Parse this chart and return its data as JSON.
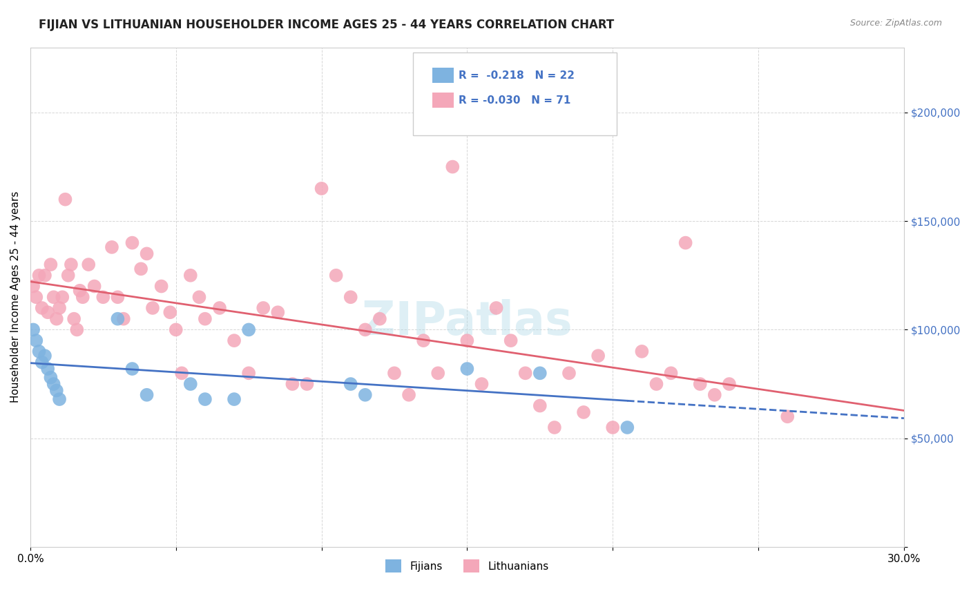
{
  "title": "FIJIAN VS LITHUANIAN HOUSEHOLDER INCOME AGES 25 - 44 YEARS CORRELATION CHART",
  "source": "Source: ZipAtlas.com",
  "xlabel": "",
  "ylabel": "Householder Income Ages 25 - 44 years",
  "xlim": [
    0.0,
    0.3
  ],
  "ylim": [
    0,
    230000
  ],
  "yticks": [
    0,
    50000,
    100000,
    150000,
    200000
  ],
  "ytick_labels": [
    "",
    "$50,000",
    "$100,000",
    "$150,000",
    "$200,000"
  ],
  "xticks": [
    0.0,
    0.05,
    0.1,
    0.15,
    0.2,
    0.25,
    0.3
  ],
  "xtick_labels": [
    "0.0%",
    "",
    "",
    "",
    "",
    "",
    "30.0%"
  ],
  "fijian_color": "#7eb3e0",
  "lithuanian_color": "#f4a7b9",
  "fijian_line_color": "#4472c4",
  "lithuanian_line_color": "#e06070",
  "r_fijian": -0.218,
  "n_fijian": 22,
  "r_lithuanian": -0.03,
  "n_lithuanian": 71,
  "fijian_x": [
    0.001,
    0.002,
    0.003,
    0.004,
    0.005,
    0.006,
    0.007,
    0.008,
    0.009,
    0.01,
    0.03,
    0.035,
    0.04,
    0.055,
    0.06,
    0.07,
    0.075,
    0.11,
    0.115,
    0.15,
    0.175,
    0.205
  ],
  "fijian_y": [
    100000,
    95000,
    90000,
    85000,
    88000,
    82000,
    78000,
    75000,
    72000,
    68000,
    105000,
    82000,
    70000,
    75000,
    68000,
    68000,
    100000,
    75000,
    70000,
    82000,
    80000,
    55000
  ],
  "lithuanian_x": [
    0.001,
    0.002,
    0.003,
    0.004,
    0.005,
    0.006,
    0.007,
    0.008,
    0.009,
    0.01,
    0.011,
    0.012,
    0.013,
    0.014,
    0.015,
    0.016,
    0.017,
    0.018,
    0.02,
    0.022,
    0.025,
    0.028,
    0.03,
    0.032,
    0.035,
    0.038,
    0.04,
    0.042,
    0.045,
    0.048,
    0.05,
    0.052,
    0.055,
    0.058,
    0.06,
    0.065,
    0.07,
    0.075,
    0.08,
    0.085,
    0.09,
    0.095,
    0.1,
    0.105,
    0.11,
    0.115,
    0.12,
    0.125,
    0.13,
    0.135,
    0.14,
    0.145,
    0.15,
    0.155,
    0.16,
    0.165,
    0.17,
    0.175,
    0.18,
    0.185,
    0.19,
    0.195,
    0.2,
    0.21,
    0.215,
    0.22,
    0.225,
    0.23,
    0.235,
    0.24,
    0.26
  ],
  "lithuanian_y": [
    120000,
    115000,
    125000,
    110000,
    125000,
    108000,
    130000,
    115000,
    105000,
    110000,
    115000,
    160000,
    125000,
    130000,
    105000,
    100000,
    118000,
    115000,
    130000,
    120000,
    115000,
    138000,
    115000,
    105000,
    140000,
    128000,
    135000,
    110000,
    120000,
    108000,
    100000,
    80000,
    125000,
    115000,
    105000,
    110000,
    95000,
    80000,
    110000,
    108000,
    75000,
    75000,
    165000,
    125000,
    115000,
    100000,
    105000,
    80000,
    70000,
    95000,
    80000,
    175000,
    95000,
    75000,
    110000,
    95000,
    80000,
    65000,
    55000,
    80000,
    62000,
    88000,
    55000,
    90000,
    75000,
    80000,
    140000,
    75000,
    70000,
    75000,
    60000
  ]
}
